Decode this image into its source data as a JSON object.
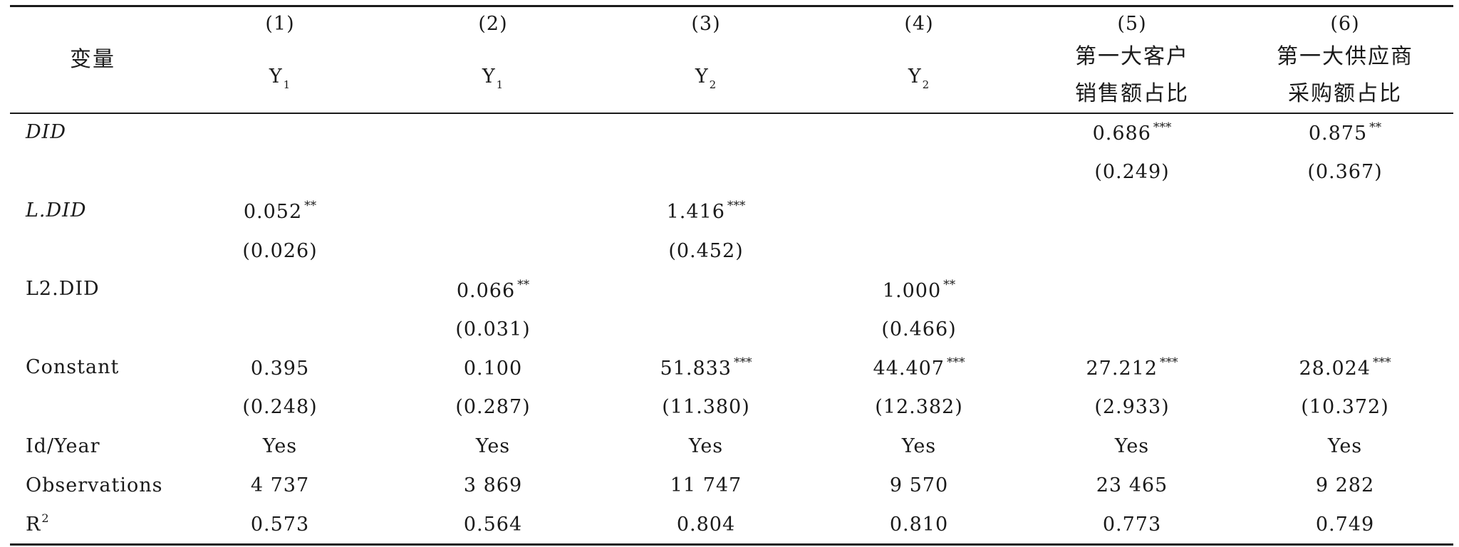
{
  "header": {
    "variable_label": "变量",
    "col_numbers": [
      "(1)",
      "(2)",
      "(3)",
      "(4)",
      "(5)",
      "(6)"
    ],
    "dep_vars": [
      {
        "base": "Y",
        "sub": "1"
      },
      {
        "base": "Y",
        "sub": "1"
      },
      {
        "base": "Y",
        "sub": "2"
      },
      {
        "base": "Y",
        "sub": "2"
      }
    ],
    "col5_line1": "第一大客户",
    "col5_line2": "销售额占比",
    "col6_line1": "第一大供应商",
    "col6_line2": "采购额占比"
  },
  "rows": {
    "did": {
      "label": "DID",
      "col5": {
        "coef": "0.686",
        "stars": "***",
        "se": "(0.249)"
      },
      "col6": {
        "coef": "0.875",
        "stars": "**",
        "se": "(0.367)"
      }
    },
    "l_did": {
      "label": "L.DID",
      "col1": {
        "coef": "0.052",
        "stars": "**",
        "se": "(0.026)"
      },
      "col3": {
        "coef": "1.416",
        "stars": "***",
        "se": "(0.452)"
      }
    },
    "l2_did": {
      "label": "L2.DID",
      "col2": {
        "coef": "0.066",
        "stars": "**",
        "se": "(0.031)"
      },
      "col4": {
        "coef": "1.000",
        "stars": "**",
        "se": "(0.466)"
      }
    },
    "constant": {
      "label": "Constant",
      "col1": {
        "coef": "0.395",
        "stars": "",
        "se": "(0.248)"
      },
      "col2": {
        "coef": "0.100",
        "stars": "",
        "se": "(0.287)"
      },
      "col3": {
        "coef": "51.833",
        "stars": "***",
        "se": "(11.380)"
      },
      "col4": {
        "coef": "44.407",
        "stars": "***",
        "se": "(12.382)"
      },
      "col5": {
        "coef": "27.212",
        "stars": "***",
        "se": "(2.933)"
      },
      "col6": {
        "coef": "28.024",
        "stars": "***",
        "se": "(10.372)"
      }
    },
    "id_year": {
      "label": "Id/Year",
      "values": [
        "Yes",
        "Yes",
        "Yes",
        "Yes",
        "Yes",
        "Yes"
      ]
    },
    "observations": {
      "label": "Observations",
      "values": [
        "4 737",
        "3 869",
        "11 747",
        "9 570",
        "23 465",
        "9 282"
      ]
    },
    "r2": {
      "label_base": "R",
      "label_sup": "2",
      "values": [
        "0.573",
        "0.564",
        "0.804",
        "0.810",
        "0.773",
        "0.749"
      ]
    }
  }
}
